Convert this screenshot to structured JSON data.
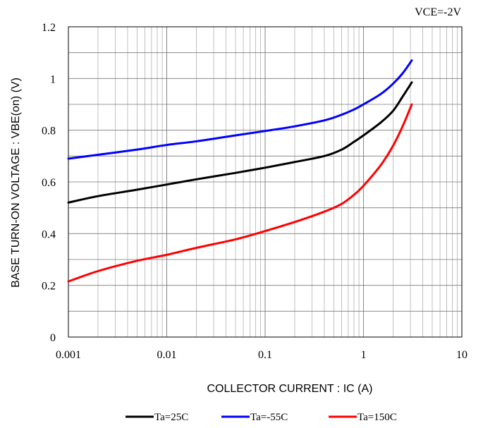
{
  "chart_data": {
    "type": "line",
    "annotation": "VCE=-2V",
    "xlabel": "COLLECTOR CURRENT : IC (A)",
    "ylabel": "BASE TURN-ON VOLTAGE : VBE(on) (V)",
    "xscale": "log",
    "xlim": [
      0.001,
      10
    ],
    "ylim": [
      0,
      1.2
    ],
    "grid": true,
    "legend_position": "bottom",
    "x_ticks": [
      "0.001",
      "0.01",
      "0.1",
      "1",
      "10"
    ],
    "y_ticks": [
      "0",
      "0.2",
      "0.4",
      "0.6",
      "0.8",
      "1",
      "1.2"
    ],
    "series": [
      {
        "name": "Ta=25C",
        "color": "#000000",
        "points": [
          [
            0.001,
            0.52
          ],
          [
            0.002,
            0.545
          ],
          [
            0.005,
            0.57
          ],
          [
            0.01,
            0.59
          ],
          [
            0.02,
            0.61
          ],
          [
            0.05,
            0.635
          ],
          [
            0.1,
            0.655
          ],
          [
            0.2,
            0.677
          ],
          [
            0.4,
            0.7
          ],
          [
            0.6,
            0.725
          ],
          [
            0.8,
            0.755
          ],
          [
            1.0,
            0.78
          ],
          [
            1.5,
            0.83
          ],
          [
            2.0,
            0.875
          ],
          [
            2.5,
            0.93
          ],
          [
            3.1,
            0.985
          ]
        ]
      },
      {
        "name": "Ta=-55C",
        "color": "#0000ff",
        "points": [
          [
            0.001,
            0.69
          ],
          [
            0.002,
            0.705
          ],
          [
            0.005,
            0.725
          ],
          [
            0.01,
            0.743
          ],
          [
            0.02,
            0.757
          ],
          [
            0.05,
            0.78
          ],
          [
            0.1,
            0.797
          ],
          [
            0.2,
            0.815
          ],
          [
            0.4,
            0.838
          ],
          [
            0.6,
            0.86
          ],
          [
            0.8,
            0.88
          ],
          [
            1.0,
            0.9
          ],
          [
            1.5,
            0.94
          ],
          [
            2.0,
            0.98
          ],
          [
            2.5,
            1.02
          ],
          [
            3.1,
            1.07
          ]
        ]
      },
      {
        "name": "Ta=150C",
        "color": "#ff0000",
        "points": [
          [
            0.001,
            0.215
          ],
          [
            0.002,
            0.255
          ],
          [
            0.005,
            0.295
          ],
          [
            0.01,
            0.318
          ],
          [
            0.02,
            0.345
          ],
          [
            0.05,
            0.378
          ],
          [
            0.1,
            0.41
          ],
          [
            0.2,
            0.445
          ],
          [
            0.4,
            0.485
          ],
          [
            0.6,
            0.515
          ],
          [
            0.8,
            0.55
          ],
          [
            1.0,
            0.585
          ],
          [
            1.5,
            0.665
          ],
          [
            2.0,
            0.74
          ],
          [
            2.5,
            0.815
          ],
          [
            3.1,
            0.9
          ]
        ]
      }
    ]
  }
}
